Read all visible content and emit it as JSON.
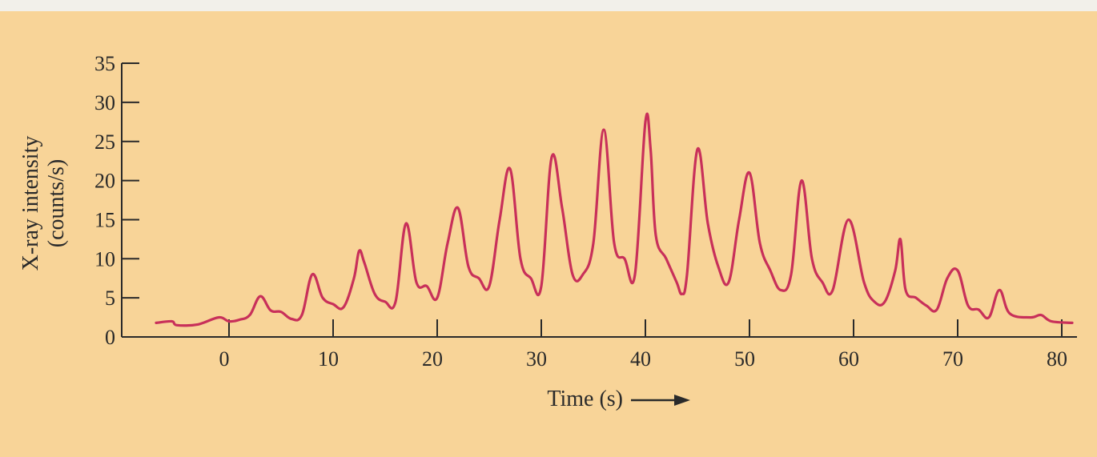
{
  "chart_data": {
    "type": "line",
    "xlabel": "Time (s)",
    "ylabel_line1": "X-ray intensity",
    "ylabel_line2": "(counts/s)",
    "xlim": [
      -7,
      81
    ],
    "ylim": [
      0,
      35
    ],
    "xticks": [
      0,
      10,
      20,
      30,
      40,
      50,
      60,
      70,
      80
    ],
    "yticks": [
      0,
      5,
      10,
      15,
      20,
      25,
      30,
      35
    ],
    "grid": false,
    "line_color": "#c8305a",
    "series": [
      {
        "x": [
          -7,
          -5.5,
          -5,
          -3,
          -1,
          0,
          1,
          2,
          3,
          4,
          5,
          6,
          7,
          8,
          9,
          10,
          11,
          12,
          12.5,
          13,
          14,
          15,
          16,
          17,
          18,
          19,
          20,
          21,
          22,
          23,
          24,
          25,
          26,
          27,
          28,
          29,
          30,
          31,
          32,
          33,
          34,
          35,
          36,
          37,
          38,
          39,
          40,
          40.5,
          41,
          42,
          43,
          43.5,
          44,
          45,
          46,
          47,
          48,
          49,
          50,
          51,
          52,
          53,
          54,
          55,
          56,
          57,
          58,
          59.5,
          61,
          62,
          63,
          64,
          64.5,
          65,
          66,
          67,
          68,
          69,
          70,
          71,
          72,
          73,
          74,
          75,
          77,
          78,
          79,
          81
        ],
        "y": [
          1.8,
          2.0,
          1.5,
          1.6,
          2.5,
          2.0,
          2.2,
          2.8,
          5.2,
          3.4,
          3.2,
          2.3,
          2.8,
          8.0,
          5.0,
          4.2,
          3.8,
          7.5,
          11.0,
          9.5,
          5.5,
          4.5,
          4.5,
          14.5,
          7.0,
          6.5,
          5.0,
          12.0,
          16.5,
          9.0,
          7.5,
          6.5,
          15.0,
          21.5,
          10.0,
          7.5,
          6.5,
          23.0,
          16.5,
          8.0,
          8.0,
          12.0,
          26.5,
          12.0,
          10.0,
          8.0,
          27.5,
          24.0,
          13.0,
          10.0,
          7.0,
          5.5,
          8.0,
          24.0,
          14.5,
          9.0,
          7.0,
          15.0,
          21.0,
          12.0,
          8.5,
          6.0,
          8.0,
          20.0,
          10.0,
          7.0,
          6.0,
          15.0,
          7.0,
          4.5,
          4.5,
          8.5,
          12.5,
          6.0,
          5.0,
          4.0,
          3.5,
          7.5,
          8.5,
          4.0,
          3.5,
          2.5,
          6.0,
          3.0,
          2.5,
          2.8,
          2.0,
          1.8
        ]
      }
    ]
  }
}
